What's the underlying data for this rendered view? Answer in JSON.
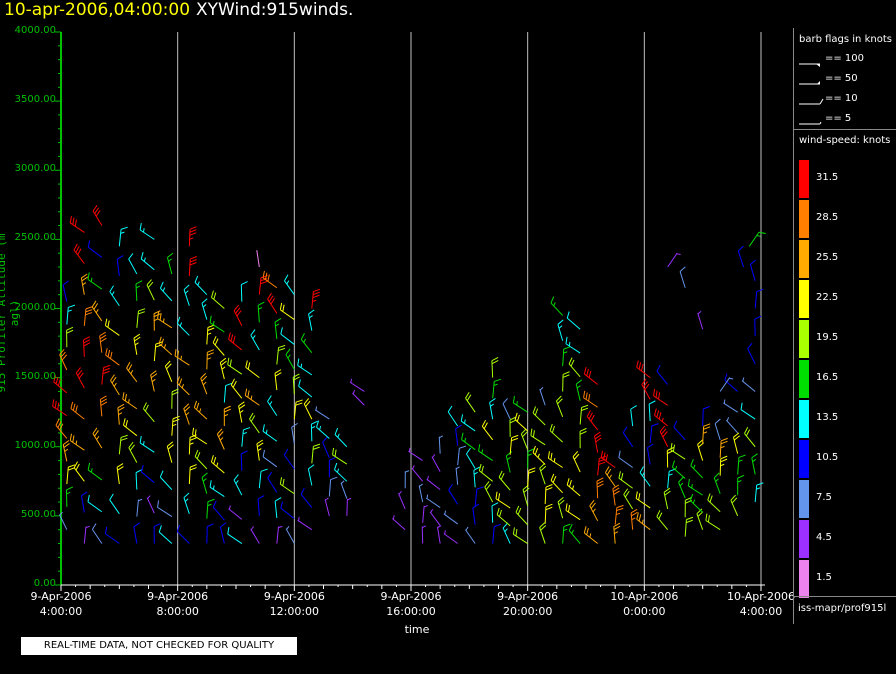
{
  "header": {
    "time": "10-apr-2006,04:00:00",
    "product": "XYWind:915winds."
  },
  "chart_data": {
    "type": "wind-barb time-height",
    "xlabel": "time",
    "ylabel": "915 Profiler Altitude (m agl)",
    "ylim": [
      0,
      4000
    ],
    "xlim_hours": [
      4,
      28
    ],
    "yticks": [
      "0.00",
      "500.00",
      "1000.00",
      "1500.00",
      "2000.00",
      "2500.00",
      "3000.00",
      "3500.00",
      "4000.00"
    ],
    "xticks": [
      {
        "date": "9-Apr-2006",
        "time": "4:00:00",
        "hour": 4
      },
      {
        "date": "9-Apr-2006",
        "time": "8:00:00",
        "hour": 8
      },
      {
        "date": "9-Apr-2006",
        "time": "12:00:00",
        "hour": 12
      },
      {
        "date": "9-Apr-2006",
        "time": "16:00:00",
        "hour": 16
      },
      {
        "date": "9-Apr-2006",
        "time": "20:00:00",
        "hour": 20
      },
      {
        "date": "10-Apr-2006",
        "time": "0:00:00",
        "hour": 24
      },
      {
        "date": "10-Apr-2006",
        "time": "4:00:00",
        "hour": 28
      }
    ],
    "grid": "vertical",
    "profiles": [
      {
        "hour": 4.2,
        "top": 2050,
        "bottom": 400,
        "speeds": [
          6,
          16,
          22,
          25,
          29,
          31,
          30,
          28,
          20,
          14,
          10
        ]
      },
      {
        "hour": 4.8,
        "top": 2550,
        "bottom": 300,
        "speeds": [
          4,
          10,
          22,
          25,
          28,
          30,
          31,
          29,
          26,
          30,
          32
        ]
      },
      {
        "hour": 5.4,
        "top": 2600,
        "bottom": 300,
        "speeds": [
          8,
          12,
          16,
          25,
          28,
          30,
          29,
          26,
          17,
          11,
          30
        ]
      },
      {
        "hour": 6.0,
        "top": 2450,
        "bottom": 300,
        "speeds": [
          10,
          12,
          22,
          20,
          26,
          24,
          28,
          21,
          14,
          11,
          13
        ]
      },
      {
        "hour": 6.6,
        "top": 2250,
        "bottom": 300,
        "speeds": [
          10,
          7,
          12,
          18,
          21,
          24,
          26,
          23,
          19,
          16,
          12
        ]
      },
      {
        "hour": 7.2,
        "top": 2500,
        "bottom": 300,
        "speeds": [
          11,
          5,
          10,
          13,
          18,
          24,
          22,
          24,
          20,
          13,
          14
        ]
      },
      {
        "hour": 7.8,
        "top": 2250,
        "bottom": 300,
        "speeds": [
          12,
          8,
          12,
          21,
          23,
          19,
          22,
          24,
          25,
          14,
          17
        ]
      },
      {
        "hour": 8.4,
        "top": 2450,
        "bottom": 300,
        "speeds": [
          10,
          13,
          21,
          23,
          26,
          25,
          24,
          13,
          14,
          32,
          33
        ]
      },
      {
        "hour": 9.0,
        "top": 2100,
        "bottom": 300,
        "speeds": [
          11,
          15,
          17,
          19,
          22,
          25,
          26,
          24,
          23,
          13,
          14
        ]
      },
      {
        "hour": 9.6,
        "top": 2000,
        "bottom": 300,
        "speeds": [
          9,
          11,
          14,
          23,
          25,
          26,
          12,
          23,
          21,
          17,
          19
        ]
      },
      {
        "hour": 10.2,
        "top": 2050,
        "bottom": 300,
        "speeds": [
          12,
          5,
          13,
          10,
          14,
          23,
          21,
          19,
          31,
          30,
          12
        ]
      },
      {
        "hour": 10.8,
        "top": 2300,
        "bottom": 300,
        "speeds": [
          4,
          10,
          12,
          23,
          20,
          24,
          22,
          14,
          17,
          32,
          2
        ]
      },
      {
        "hour": 11.4,
        "top": 2150,
        "bottom": 300,
        "speeds": [
          5,
          12,
          10,
          8,
          13,
          14,
          22,
          19,
          17,
          31,
          28
        ]
      },
      {
        "hour": 12.0,
        "top": 2100,
        "bottom": 300,
        "speeds": [
          7,
          11,
          19,
          11,
          8,
          22,
          20,
          15,
          12,
          22,
          14
        ]
      },
      {
        "hour": 12.6,
        "top": 2000,
        "bottom": 400,
        "speeds": [
          5,
          10,
          12,
          19,
          14,
          22,
          12,
          13,
          17,
          14,
          33
        ]
      },
      {
        "hour": 13.2,
        "top": 1200,
        "bottom": 500,
        "speeds": [
          5,
          8,
          9,
          11,
          13,
          6
        ]
      },
      {
        "hour": 13.8,
        "top": 1000,
        "bottom": 500,
        "speeds": [
          5,
          7,
          14,
          18,
          13
        ]
      },
      {
        "hour": 14.4,
        "top": 1400,
        "bottom": 1300,
        "speeds": [
          4,
          5
        ]
      },
      {
        "hour": 15.8,
        "top": 700,
        "bottom": 400,
        "speeds": [
          5,
          4,
          6
        ]
      },
      {
        "hour": 16.4,
        "top": 900,
        "bottom": 300,
        "speeds": [
          4,
          5,
          6,
          4,
          5
        ]
      },
      {
        "hour": 17.0,
        "top": 950,
        "bottom": 300,
        "speeds": [
          4,
          5,
          6,
          5,
          4,
          7
        ]
      },
      {
        "hour": 17.6,
        "top": 1150,
        "bottom": 300,
        "speeds": [
          5,
          7,
          9,
          6,
          8,
          11,
          12
        ]
      },
      {
        "hour": 18.2,
        "top": 1250,
        "bottom": 300,
        "speeds": [
          7,
          9,
          11,
          13,
          12,
          17,
          14,
          20
        ]
      },
      {
        "hour": 18.8,
        "top": 1500,
        "bottom": 300,
        "speeds": [
          11,
          12,
          19,
          18,
          17,
          21,
          13,
          16,
          19
        ]
      },
      {
        "hour": 19.4,
        "top": 1200,
        "bottom": 300,
        "speeds": [
          13,
          20,
          22,
          19,
          16,
          22,
          19,
          8
        ]
      },
      {
        "hour": 20.0,
        "top": 1250,
        "bottom": 300,
        "speeds": [
          18,
          19,
          20,
          22,
          17,
          20,
          21,
          17
        ]
      },
      {
        "hour": 20.6,
        "top": 1300,
        "bottom": 300,
        "speeds": [
          20,
          22,
          21,
          18,
          23,
          20,
          19,
          6
        ]
      },
      {
        "hour": 21.2,
        "top": 1950,
        "bottom": 300,
        "speeds": [
          17,
          20,
          22,
          23,
          19,
          18,
          20,
          15,
          13,
          16
        ]
      },
      {
        "hour": 21.8,
        "top": 1850,
        "bottom": 300,
        "speeds": [
          16,
          21,
          23,
          22,
          20,
          18,
          17,
          19,
          14,
          12
        ]
      },
      {
        "hour": 22.4,
        "top": 1450,
        "bottom": 300,
        "speeds": [
          25,
          26,
          29,
          31,
          32,
          31,
          29,
          30
        ]
      },
      {
        "hour": 23.0,
        "top": 850,
        "bottom": 300,
        "speeds": [
          25,
          27,
          28,
          24,
          31
        ]
      },
      {
        "hour": 23.6,
        "top": 1150,
        "bottom": 400,
        "speeds": [
          27,
          20,
          19,
          8,
          11,
          12
        ]
      },
      {
        "hour": 24.2,
        "top": 1500,
        "bottom": 400,
        "speeds": [
          24,
          21,
          13,
          9,
          11,
          12,
          31,
          32
        ]
      },
      {
        "hour": 24.8,
        "top": 1450,
        "bottom": 400,
        "speeds": [
          19,
          18,
          13,
          21,
          31,
          33,
          32,
          11
        ]
      },
      {
        "hour": 25.4,
        "top": 1050,
        "bottom": 350,
        "speeds": [
          20,
          19,
          17,
          16,
          19,
          11
        ]
      },
      {
        "hour": 26.0,
        "top": 1150,
        "bottom": 400,
        "speeds": [
          18,
          17,
          16,
          17,
          22,
          24,
          10
        ]
      },
      {
        "hour": 26.6,
        "top": 1050,
        "bottom": 400,
        "speeds": [
          19,
          18,
          16,
          23,
          25,
          8
        ]
      },
      {
        "hour": 27.2,
        "top": 1400,
        "bottom": 500,
        "speeds": [
          19,
          17,
          15,
          22,
          7,
          6,
          9
        ]
      },
      {
        "hour": 27.8,
        "top": 2000,
        "bottom": 600,
        "speeds": [
          14,
          16,
          18,
          12,
          6,
          10,
          11,
          10
        ]
      }
    ],
    "sparse_barbs": [
      {
        "hour": 24.8,
        "alt": 2300,
        "speed": 5
      },
      {
        "hour": 25.4,
        "alt": 2150,
        "speed": 8
      },
      {
        "hour": 26.0,
        "alt": 1850,
        "speed": 5
      },
      {
        "hour": 27.6,
        "alt": 2450,
        "speed": 17
      },
      {
        "hour": 27.4,
        "alt": 2300,
        "speed": 9
      },
      {
        "hour": 27.8,
        "alt": 2200,
        "speed": 10
      },
      {
        "hour": 26.6,
        "alt": 1400,
        "speed": 7
      }
    ]
  },
  "legend": {
    "flags_title": "barb flags in knots",
    "flags": [
      {
        "label": "== 100",
        "kind": "pennant"
      },
      {
        "label": "== 50",
        "kind": "pennant"
      },
      {
        "label": "== 10",
        "kind": "full"
      },
      {
        "label": "== 5",
        "kind": "half"
      }
    ],
    "speed_title": "wind-speed: knots",
    "scale": [
      {
        "label": "31.5",
        "color": "#ff0000"
      },
      {
        "label": "28.5",
        "color": "#ff7f00"
      },
      {
        "label": "25.5",
        "color": "#ffaa00"
      },
      {
        "label": "22.5",
        "color": "#ffff00"
      },
      {
        "label": "19.5",
        "color": "#aaff00"
      },
      {
        "label": "16.5",
        "color": "#00dd00"
      },
      {
        "label": "13.5",
        "color": "#00ffff"
      },
      {
        "label": "10.5",
        "color": "#0000ff"
      },
      {
        "label": "7.5",
        "color": "#6495ed"
      },
      {
        "label": "4.5",
        "color": "#9b30ff"
      },
      {
        "label": "1.5",
        "color": "#ee82ee"
      }
    ],
    "footer": "iss-mapr/prof915l"
  },
  "notice": "REAL-TIME DATA, NOT CHECKED FOR QUALITY"
}
